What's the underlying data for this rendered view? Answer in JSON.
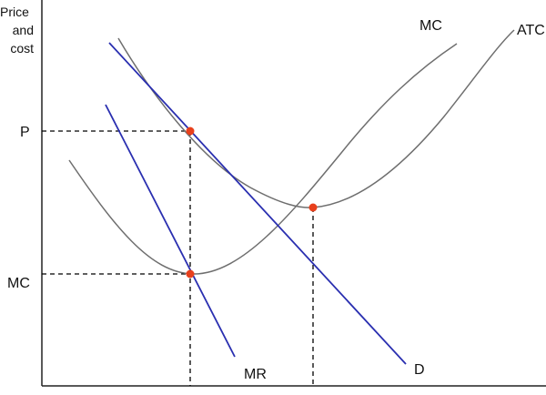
{
  "axes": {
    "y_title_lines": [
      "Price",
      "and",
      "cost"
    ]
  },
  "y_ticks": {
    "price": "P",
    "marginal_cost": "MC"
  },
  "curves": {
    "mc_label": "MC",
    "atc_label": "ATC",
    "demand_label": "D",
    "mr_label": "MR"
  },
  "colors": {
    "cost_curves": "#6e6e6e",
    "demand_lines": "#2a2fb0",
    "points": "#e8401c",
    "axes": "#222222",
    "guides": "#000000"
  }
}
